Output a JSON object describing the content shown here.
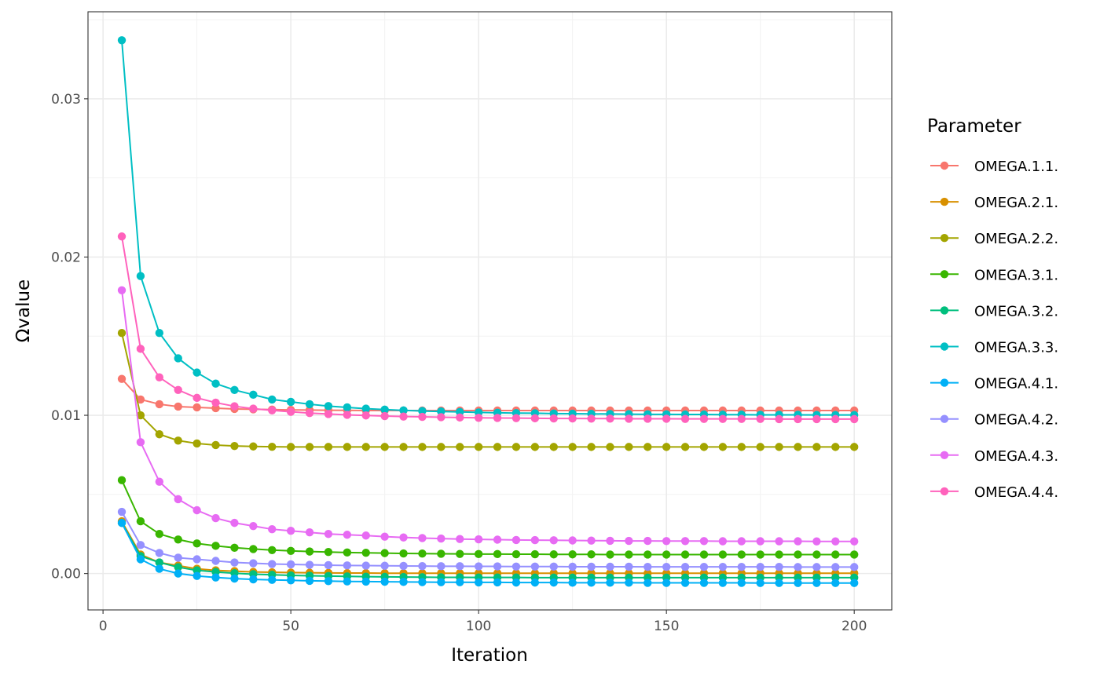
{
  "chart_data": {
    "type": "line",
    "title": "",
    "xlabel": "Iteration",
    "ylabel": "Ωvalue",
    "xlim": [
      -4,
      210
    ],
    "ylim": [
      -0.0023,
      0.0355
    ],
    "x_ticks": [
      0,
      50,
      100,
      150,
      200
    ],
    "x_tick_labels": [
      "0",
      "50",
      "100",
      "150",
      "200"
    ],
    "y_ticks": [
      0.0,
      0.01,
      0.02,
      0.03
    ],
    "y_tick_labels": [
      "0.00",
      "0.01",
      "0.02",
      "0.03"
    ],
    "grid": true,
    "markers": true,
    "legend": {
      "title": "Parameter",
      "placement": "right"
    },
    "x": [
      5,
      10,
      15,
      20,
      25,
      30,
      35,
      40,
      45,
      50,
      55,
      60,
      65,
      70,
      75,
      80,
      85,
      90,
      95,
      100,
      105,
      110,
      115,
      120,
      125,
      130,
      135,
      140,
      145,
      150,
      155,
      160,
      165,
      170,
      175,
      180,
      185,
      190,
      195,
      200
    ],
    "series": [
      {
        "name": "OMEGA.1.1.",
        "color": "#F8766D",
        "values": [
          0.0123,
          0.011,
          0.0107,
          0.01055,
          0.0105,
          0.01045,
          0.0104,
          0.01038,
          0.01036,
          0.01034,
          0.01033,
          0.01032,
          0.01031,
          0.0103,
          0.0103,
          0.0103,
          0.0103,
          0.0103,
          0.0103,
          0.0103,
          0.0103,
          0.0103,
          0.0103,
          0.0103,
          0.0103,
          0.0103,
          0.0103,
          0.0103,
          0.0103,
          0.0103,
          0.0103,
          0.0103,
          0.0103,
          0.0103,
          0.0103,
          0.0103,
          0.0103,
          0.0103,
          0.0103,
          0.0103
        ]
      },
      {
        "name": "OMEGA.2.1.",
        "color": "#D89000",
        "values": [
          0.0033,
          0.0012,
          0.0007,
          0.0005,
          0.0003,
          0.0002,
          0.00015,
          0.0001,
          8e-05,
          6e-05,
          5e-05,
          4e-05,
          3e-05,
          3e-05,
          2e-05,
          2e-05,
          2e-05,
          2e-05,
          2e-05,
          2e-05,
          2e-05,
          2e-05,
          2e-05,
          2e-05,
          2e-05,
          2e-05,
          2e-05,
          2e-05,
          2e-05,
          2e-05,
          2e-05,
          2e-05,
          2e-05,
          2e-05,
          2e-05,
          2e-05,
          2e-05,
          2e-05,
          2e-05,
          2e-05
        ]
      },
      {
        "name": "OMEGA.2.2.",
        "color": "#A3A500",
        "values": [
          0.0152,
          0.01,
          0.0088,
          0.0084,
          0.00822,
          0.00812,
          0.00806,
          0.00803,
          0.00801,
          0.008,
          0.008,
          0.008,
          0.008,
          0.008,
          0.008,
          0.008,
          0.008,
          0.008,
          0.008,
          0.008,
          0.008,
          0.008,
          0.008,
          0.008,
          0.008,
          0.008,
          0.008,
          0.008,
          0.008,
          0.008,
          0.008,
          0.008,
          0.008,
          0.008,
          0.008,
          0.008,
          0.008,
          0.008,
          0.008,
          0.008
        ]
      },
      {
        "name": "OMEGA.3.1.",
        "color": "#39B600",
        "values": [
          0.0059,
          0.0033,
          0.0025,
          0.00215,
          0.0019,
          0.00175,
          0.00163,
          0.00155,
          0.00148,
          0.00143,
          0.00139,
          0.00136,
          0.00133,
          0.00131,
          0.00129,
          0.00127,
          0.00126,
          0.00125,
          0.00124,
          0.00123,
          0.00123,
          0.00122,
          0.00122,
          0.00121,
          0.00121,
          0.00121,
          0.0012,
          0.0012,
          0.0012,
          0.0012,
          0.0012,
          0.0012,
          0.0012,
          0.0012,
          0.0012,
          0.0012,
          0.0012,
          0.0012,
          0.0012,
          0.0012
        ]
      },
      {
        "name": "OMEGA.3.2.",
        "color": "#00BF7D",
        "values": [
          0.0032,
          0.0011,
          0.0007,
          0.0004,
          0.0002,
          0.0001,
          2e-05,
          -4e-05,
          -8e-05,
          -0.00012,
          -0.00014,
          -0.00016,
          -0.00018,
          -0.0002,
          -0.00021,
          -0.00022,
          -0.00023,
          -0.00024,
          -0.00024,
          -0.00025,
          -0.00025,
          -0.00025,
          -0.00026,
          -0.00026,
          -0.00026,
          -0.00026,
          -0.00026,
          -0.00026,
          -0.00026,
          -0.00026,
          -0.00026,
          -0.00026,
          -0.00026,
          -0.00026,
          -0.00026,
          -0.00026,
          -0.00026,
          -0.00026,
          -0.00026,
          -0.00026
        ]
      },
      {
        "name": "OMEGA.3.3.",
        "color": "#00BFC4",
        "values": [
          0.0337,
          0.0188,
          0.0152,
          0.0136,
          0.0127,
          0.012,
          0.0116,
          0.0113,
          0.011,
          0.01085,
          0.0107,
          0.01058,
          0.0105,
          0.01042,
          0.01036,
          0.01031,
          0.01027,
          0.01024,
          0.01021,
          0.01018,
          0.01016,
          0.01014,
          0.01013,
          0.01011,
          0.0101,
          0.01009,
          0.01008,
          0.01007,
          0.01006,
          0.01006,
          0.01005,
          0.01005,
          0.01004,
          0.01004,
          0.01003,
          0.01003,
          0.01003,
          0.01002,
          0.01002,
          0.01002
        ]
      },
      {
        "name": "OMEGA.4.1.",
        "color": "#00B0F6",
        "values": [
          0.0032,
          0.0009,
          0.0003,
          0.0,
          -0.00015,
          -0.00025,
          -0.00032,
          -0.00037,
          -0.0004,
          -0.00043,
          -0.00046,
          -0.00048,
          -0.0005,
          -0.00051,
          -0.00052,
          -0.00053,
          -0.00054,
          -0.00055,
          -0.00055,
          -0.00056,
          -0.00056,
          -0.00057,
          -0.00057,
          -0.00057,
          -0.00058,
          -0.00058,
          -0.00058,
          -0.00058,
          -0.00059,
          -0.00059,
          -0.00059,
          -0.00059,
          -0.00059,
          -0.00059,
          -0.0006,
          -0.0006,
          -0.0006,
          -0.0006,
          -0.0006,
          -0.0006
        ]
      },
      {
        "name": "OMEGA.4.2.",
        "color": "#9590FF",
        "values": [
          0.0039,
          0.0018,
          0.0013,
          0.001,
          0.0009,
          0.0008,
          0.0007,
          0.00065,
          0.0006,
          0.00058,
          0.00055,
          0.00053,
          0.00051,
          0.0005,
          0.00049,
          0.00048,
          0.00047,
          0.00046,
          0.00046,
          0.00045,
          0.00045,
          0.00044,
          0.00044,
          0.00044,
          0.00043,
          0.00043,
          0.00043,
          0.00043,
          0.00042,
          0.00042,
          0.00042,
          0.00042,
          0.00042,
          0.00042,
          0.00042,
          0.00042,
          0.00041,
          0.00041,
          0.00041,
          0.00041
        ]
      },
      {
        "name": "OMEGA.4.3.",
        "color": "#E76BF3",
        "values": [
          0.0179,
          0.0083,
          0.0058,
          0.0047,
          0.004,
          0.0035,
          0.0032,
          0.003,
          0.0028,
          0.0027,
          0.0026,
          0.0025,
          0.00245,
          0.0024,
          0.00233,
          0.00228,
          0.00224,
          0.00221,
          0.00218,
          0.00216,
          0.00214,
          0.00212,
          0.00211,
          0.0021,
          0.00209,
          0.00208,
          0.00207,
          0.00206,
          0.00206,
          0.00205,
          0.00205,
          0.00205,
          0.00204,
          0.00204,
          0.00204,
          0.00204,
          0.00204,
          0.00203,
          0.00203,
          0.00203
        ]
      },
      {
        "name": "OMEGA.4.4.",
        "color": "#FF62BC",
        "values": [
          0.0213,
          0.0142,
          0.0124,
          0.0116,
          0.0111,
          0.0108,
          0.01057,
          0.01042,
          0.01031,
          0.01022,
          0.01014,
          0.01008,
          0.01003,
          0.00999,
          0.00995,
          0.00992,
          0.0099,
          0.00988,
          0.00986,
          0.00984,
          0.00983,
          0.00982,
          0.00981,
          0.0098,
          0.0098,
          0.00979,
          0.00979,
          0.00978,
          0.00978,
          0.00978,
          0.00977,
          0.00977,
          0.00977,
          0.00977,
          0.00977,
          0.00976,
          0.00976,
          0.00976,
          0.00976,
          0.00976
        ]
      }
    ]
  }
}
